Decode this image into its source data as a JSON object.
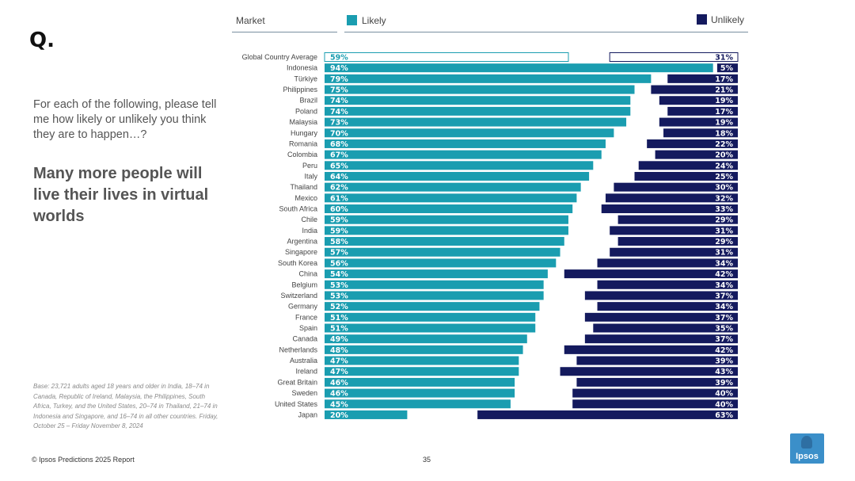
{
  "q_label": "Q.",
  "question": "For each of the following, please tell me how likely or unlikely you think they are to happen…?",
  "statement": "Many more people will live their lives in virtual worlds",
  "base_note": "Base: 23,721 adults aged 18 years and older in India, 18–74 in Canada, Republic of Ireland, Malaysia, the Philippines, South Africa, Turkey, and the United States, 20–74 in Thailand, 21–74 in Indonesia and Singapore, and 16–74 in all other countries. Friday, October 25 – Friday November  8, 2024",
  "footer": "© Ipsos Predictions 2025 Report",
  "page_number": "35",
  "logo_text": "Ipsos",
  "colors": {
    "likely": "#1a9db0",
    "unlikely": "#141a5e",
    "average_outline": "#1a9db0",
    "average_unlikely_outline": "#141a5e"
  },
  "chart_data": {
    "type": "bar",
    "column_header": "Market",
    "series": [
      {
        "name": "Likely",
        "values": [
          59,
          94,
          79,
          75,
          74,
          74,
          73,
          70,
          68,
          67,
          65,
          64,
          62,
          61,
          60,
          59,
          59,
          58,
          57,
          56,
          54,
          53,
          53,
          52,
          51,
          51,
          49,
          48,
          47,
          47,
          46,
          46,
          45,
          20
        ]
      },
      {
        "name": "Unlikely",
        "values": [
          31,
          5,
          17,
          21,
          19,
          17,
          19,
          18,
          22,
          20,
          24,
          25,
          30,
          32,
          33,
          29,
          31,
          29,
          31,
          34,
          42,
          34,
          37,
          34,
          37,
          35,
          37,
          42,
          39,
          43,
          39,
          40,
          40,
          63
        ]
      }
    ],
    "categories": [
      "Global Country Average",
      "Indonesia",
      "Türkiye",
      "Philippines",
      "Brazil",
      "Poland",
      "Malaysia",
      "Hungary",
      "Romania",
      "Colombia",
      "Peru",
      "Italy",
      "Thailand",
      "Mexico",
      "South Africa",
      "Chile",
      "India",
      "Argentina",
      "Singapore",
      "South Korea",
      "China",
      "Belgium",
      "Switzerland",
      "Germany",
      "France",
      "Spain",
      "Canada",
      "Netherlands",
      "Australia",
      "Ireland",
      "Great Britain",
      "Sweden",
      "United States",
      "Japan"
    ],
    "value_suffix": "%",
    "xlim": [
      0,
      100
    ]
  }
}
